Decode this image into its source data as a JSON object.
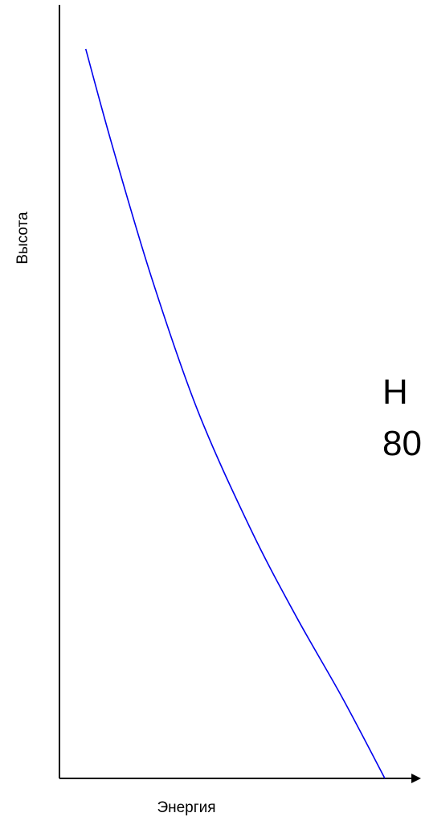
{
  "chart_data": {
    "type": "line",
    "title": "",
    "xlabel": "Энергия",
    "ylabel": "Высота",
    "x_ticks": [],
    "y_ticks": [],
    "grid": false,
    "colors": {
      "series": "#0000ee",
      "axes": "#000000"
    },
    "series": [
      {
        "x": [
          0.08,
          0.16,
          0.28,
          0.42,
          0.58,
          0.72,
          0.86,
          0.99
        ],
        "y": [
          0.99,
          0.86,
          0.68,
          0.5,
          0.34,
          0.22,
          0.11,
          0.0
        ]
      }
    ],
    "xlim": [
      0,
      1.1
    ],
    "ylim": [
      0,
      1.05
    ]
  },
  "overlay_text": {
    "line1": "Н",
    "line2": "80"
  }
}
